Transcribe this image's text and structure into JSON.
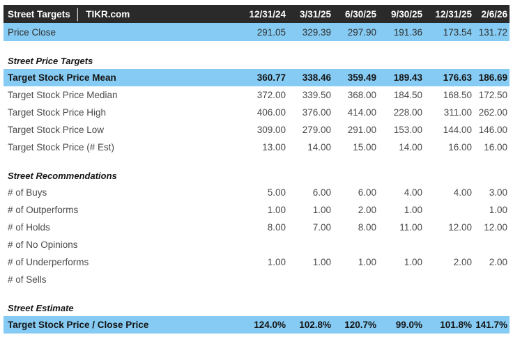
{
  "header": {
    "title_left": "Street Targets",
    "separator": "│",
    "title_right": "TIKR.com",
    "date_columns": [
      "12/31/24",
      "3/31/25",
      "6/30/25",
      "9/30/25",
      "12/31/25",
      "2/6/26"
    ]
  },
  "colors": {
    "header_bg": "#2a2a2a",
    "header_text": "#ffffff",
    "highlight_bg": "#86cbf3",
    "text_normal": "#4a4a4a",
    "text_strong": "#141414"
  },
  "rows": [
    {
      "type": "data",
      "style": "highlight",
      "label": "Price Close",
      "values": [
        "291.05",
        "329.39",
        "297.90",
        "191.36",
        "173.54",
        "131.72"
      ]
    },
    {
      "type": "spacer"
    },
    {
      "type": "section",
      "label": "Street Price Targets"
    },
    {
      "type": "data",
      "style": "highlight-bold",
      "label": "Target Stock Price Mean",
      "values": [
        "360.77",
        "338.46",
        "359.49",
        "189.43",
        "176.63",
        "186.69"
      ]
    },
    {
      "type": "data",
      "style": "normal",
      "label": "Target Stock Price Median",
      "values": [
        "372.00",
        "339.50",
        "368.00",
        "184.50",
        "168.50",
        "172.50"
      ]
    },
    {
      "type": "data",
      "style": "normal",
      "label": "Target Stock Price High",
      "values": [
        "406.00",
        "376.00",
        "414.00",
        "228.00",
        "311.00",
        "262.00"
      ]
    },
    {
      "type": "data",
      "style": "normal",
      "label": "Target Stock Price Low",
      "values": [
        "309.00",
        "279.00",
        "291.00",
        "153.00",
        "144.00",
        "146.00"
      ]
    },
    {
      "type": "data",
      "style": "normal",
      "label": "Target Stock Price (# Est)",
      "values": [
        "13.00",
        "14.00",
        "15.00",
        "14.00",
        "16.00",
        "16.00"
      ]
    },
    {
      "type": "spacer"
    },
    {
      "type": "section",
      "label": "Street Recommendations"
    },
    {
      "type": "data",
      "style": "normal",
      "label": "# of Buys",
      "values": [
        "5.00",
        "6.00",
        "6.00",
        "4.00",
        "4.00",
        "3.00"
      ]
    },
    {
      "type": "data",
      "style": "normal",
      "label": "# of Outperforms",
      "values": [
        "1.00",
        "1.00",
        "2.00",
        "1.00",
        "",
        "1.00"
      ]
    },
    {
      "type": "data",
      "style": "normal",
      "label": "# of Holds",
      "values": [
        "8.00",
        "7.00",
        "8.00",
        "11.00",
        "12.00",
        "12.00"
      ]
    },
    {
      "type": "data",
      "style": "normal",
      "label": "# of No Opinions",
      "values": [
        "",
        "",
        "",
        "",
        "",
        ""
      ]
    },
    {
      "type": "data",
      "style": "normal",
      "label": "# of Underperforms",
      "values": [
        "1.00",
        "1.00",
        "1.00",
        "1.00",
        "2.00",
        "2.00"
      ]
    },
    {
      "type": "data",
      "style": "normal",
      "label": "# of Sells",
      "values": [
        "",
        "",
        "",
        "",
        "",
        ""
      ]
    },
    {
      "type": "spacer"
    },
    {
      "type": "section",
      "label": "Street Estimate"
    },
    {
      "type": "data",
      "style": "highlight-bold",
      "label": "Target Stock Price / Close Price",
      "values": [
        "124.0%",
        "102.8%",
        "120.7%",
        "99.0%",
        "101.8%",
        "141.7%"
      ]
    }
  ]
}
